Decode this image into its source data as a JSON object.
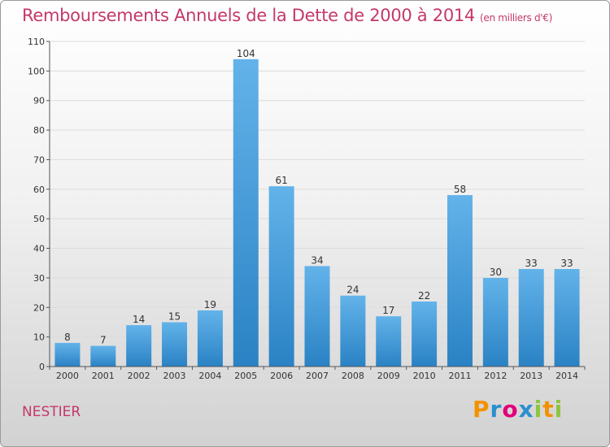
{
  "title": "Remboursements Annuels de la Dette de 2000 à 2014",
  "unit": "(en milliers d'€)",
  "commune": "NESTIER",
  "logo": {
    "text": "Proxiti",
    "letters": [
      {
        "ch": "P",
        "color": "#f39200"
      },
      {
        "ch": "r",
        "color": "#2b8fcf"
      },
      {
        "ch": "o",
        "color": "#e2007a"
      },
      {
        "ch": "x",
        "color": "#2b8fcf"
      },
      {
        "ch": "i",
        "color": "#8cc63f"
      },
      {
        "ch": "t",
        "color": "#f39200"
      },
      {
        "ch": "i",
        "color": "#8cc63f"
      }
    ]
  },
  "colors": {
    "bar_light": "#63b3ea",
    "bar_dark": "#2a82c4",
    "title": "#c4386b"
  },
  "chart_data": {
    "type": "bar",
    "title": "Remboursements Annuels de la Dette de 2000 à 2014",
    "xlabel": "",
    "ylabel": "",
    "categories": [
      "2000",
      "2001",
      "2002",
      "2003",
      "2004",
      "2005",
      "2006",
      "2007",
      "2008",
      "2009",
      "2010",
      "2011",
      "2012",
      "2013",
      "2014"
    ],
    "values": [
      8,
      7,
      14,
      15,
      19,
      104,
      61,
      34,
      24,
      17,
      22,
      58,
      30,
      33,
      33
    ],
    "ylim": [
      0,
      110
    ],
    "yticks": [
      0,
      10,
      20,
      30,
      40,
      50,
      60,
      70,
      80,
      90,
      100,
      110
    ],
    "grid": true,
    "legend": "none"
  }
}
